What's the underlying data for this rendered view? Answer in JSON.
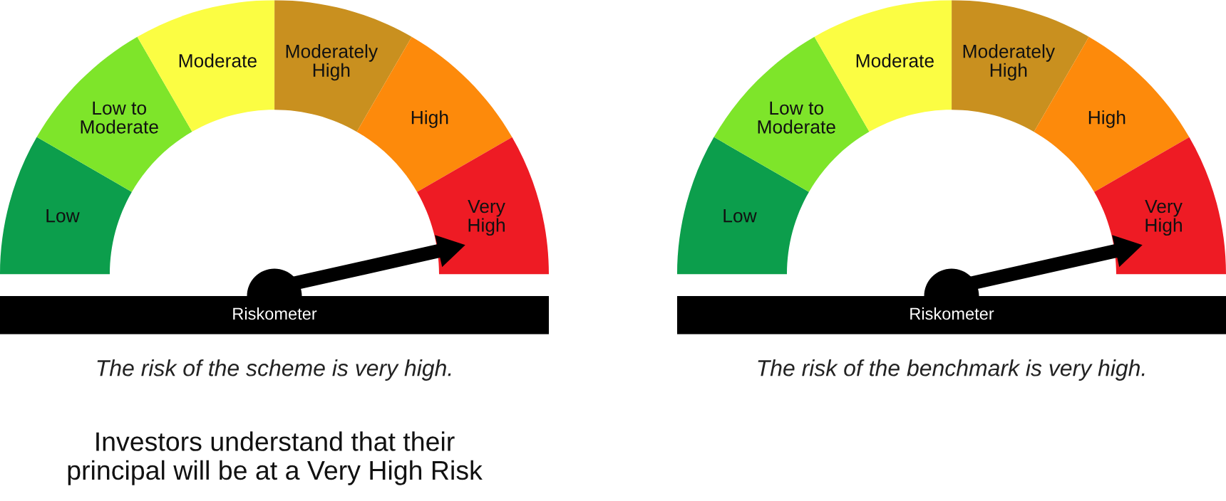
{
  "chart_data": [
    {
      "type": "donut",
      "categories": [
        "Low",
        "Low to Moderate",
        "Moderate",
        "Moderately High",
        "High",
        "Very High"
      ],
      "values": [
        16.67,
        16.67,
        16.67,
        16.67,
        16.66,
        16.66
      ],
      "colors": [
        "#0c9e4c",
        "#7ee52a",
        "#fbfd43",
        "#c9901f",
        "#fd8a0b",
        "#ee1b24"
      ],
      "needle": "Very High",
      "legend": false,
      "xlabel": "Riskometer",
      "annotations": [
        "The risk of the scheme is very high.",
        "Investors understand that their principal will be at a Very High Risk"
      ]
    },
    {
      "type": "donut",
      "categories": [
        "Low",
        "Low to Moderate",
        "Moderate",
        "Moderately High",
        "High",
        "Very High"
      ],
      "values": [
        16.67,
        16.67,
        16.67,
        16.67,
        16.66,
        16.66
      ],
      "colors": [
        "#0c9e4c",
        "#7ee52a",
        "#fbfd43",
        "#c9901f",
        "#fd8a0b",
        "#ee1b24"
      ],
      "needle": "Very High",
      "legend": false,
      "xlabel": "Riskometer",
      "annotations": [
        "The risk of the benchmark is very high."
      ]
    }
  ]
}
